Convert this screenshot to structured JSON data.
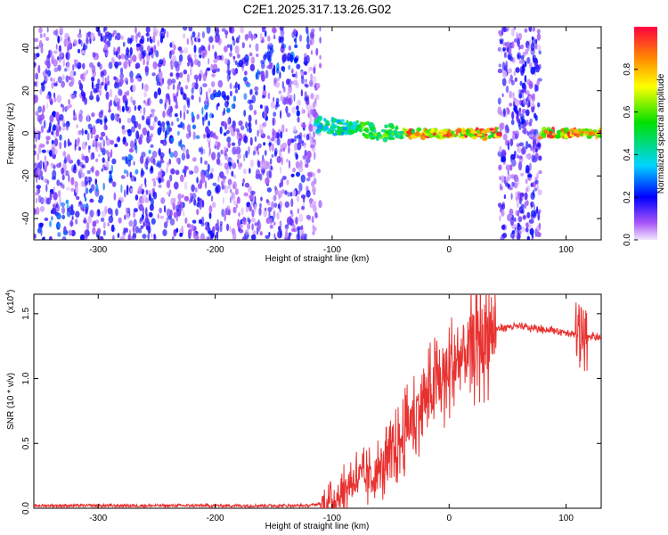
{
  "chart_data": [
    {
      "type": "heatmap",
      "title": "C2E1.2025.317.13.26.G02",
      "xlabel": "Height of straight line (km)",
      "ylabel": "Frequency (Hz)",
      "xlim": [
        -355,
        130
      ],
      "ylim": [
        -50,
        50
      ],
      "xticks": [
        -300,
        -200,
        -100,
        0,
        100
      ],
      "yticks": [
        -40,
        -20,
        0,
        20,
        40
      ],
      "colorbar": {
        "label": "Normalized spectral amplitude",
        "range": [
          0,
          1
        ],
        "ticks": [
          "0.0",
          "0.2",
          "0.4",
          "0.6",
          "0.8"
        ]
      },
      "features": [
        {
          "region": "broadband noise",
          "x_range": [
            -355,
            -110
          ],
          "freq_range": [
            -50,
            50
          ],
          "amplitude": 0.15
        },
        {
          "region": "signal track",
          "x_range": [
            -115,
            130
          ],
          "freq_center": 0,
          "amplitude_range": [
            0.3,
            1.0
          ]
        },
        {
          "region": "vertical noise band",
          "x_range": [
            43,
            78
          ],
          "freq_range": [
            -50,
            50
          ],
          "amplitude": 0.15
        }
      ]
    },
    {
      "type": "line",
      "title": "",
      "xlabel": "Height of straight line (km)",
      "ylabel": "SNR (10 * v/v)",
      "scale_label": "(x10",
      "scale_exp": "4",
      "xlim": [
        -355,
        130
      ],
      "ylim": [
        0,
        1.65
      ],
      "xticks": [
        -300,
        -200,
        -100,
        0,
        100
      ],
      "yticks": [
        "0.0",
        "0.5",
        "1.0",
        "1.5"
      ],
      "series": [
        {
          "name": "SNR",
          "color": "#e8312f",
          "x": [
            -355,
            -300,
            -250,
            -200,
            -150,
            -120,
            -100,
            -90,
            -80,
            -70,
            -60,
            -50,
            -40,
            -30,
            -20,
            -10,
            0,
            10,
            20,
            30,
            40,
            50,
            60,
            70,
            80,
            90,
            100,
            110,
            115,
            120,
            130
          ],
          "y": [
            0.02,
            0.02,
            0.02,
            0.02,
            0.02,
            0.02,
            0.05,
            0.14,
            0.25,
            0.22,
            0.28,
            0.38,
            0.55,
            0.72,
            0.85,
            0.95,
            1.05,
            1.15,
            1.25,
            1.33,
            1.38,
            1.4,
            1.4,
            1.39,
            1.38,
            1.37,
            1.36,
            1.34,
            1.3,
            1.33,
            1.31
          ]
        }
      ]
    }
  ]
}
